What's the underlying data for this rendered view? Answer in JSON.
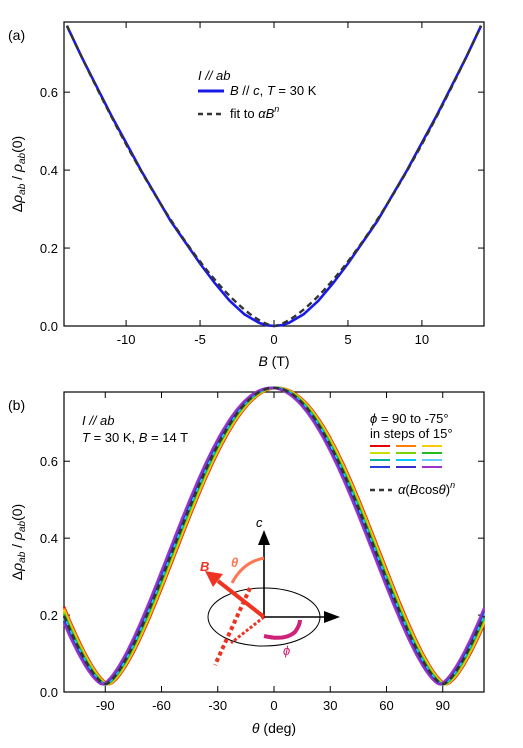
{
  "chart_data": [
    {
      "panel_label": "(a)",
      "type": "line",
      "ylabel": "Δρ_ab / ρ_ab(0)",
      "xlabel": "B (T)",
      "xlim": [
        -14.2,
        14.2
      ],
      "ylim": [
        0,
        0.78
      ],
      "xticks": [
        -10,
        -5,
        0,
        5,
        10
      ],
      "xtick_labels": [
        "-10",
        "-5",
        "0",
        "5",
        "10"
      ],
      "yticks": [
        0.0,
        0.2,
        0.4,
        0.6
      ],
      "ytick_labels": [
        "0.0",
        "0.2",
        "0.4",
        "0.6"
      ],
      "grid": false,
      "legend": {
        "position": "top-center",
        "header": "I // ab",
        "entries": [
          "B // c,  T = 30 K",
          "fit to αB^n"
        ]
      },
      "series": [
        {
          "name": "B // c,  T = 30 K",
          "color": "#1a1ae6",
          "style": "solid",
          "x": [
            -14,
            -13,
            -12,
            -11,
            -10,
            -9,
            -8,
            -7,
            -6,
            -5,
            -4,
            -3,
            -2,
            -1,
            -0.5,
            0,
            0.5,
            1,
            2,
            3,
            4,
            5,
            6,
            7,
            8,
            9,
            10,
            11,
            12,
            13,
            14
          ],
          "y": [
            0.77,
            0.69,
            0.615,
            0.54,
            0.47,
            0.4,
            0.335,
            0.27,
            0.215,
            0.16,
            0.11,
            0.065,
            0.03,
            0.008,
            0.002,
            0.0,
            0.002,
            0.008,
            0.03,
            0.065,
            0.11,
            0.16,
            0.215,
            0.27,
            0.335,
            0.4,
            0.47,
            0.54,
            0.615,
            0.69,
            0.77
          ]
        },
        {
          "name": "fit to αB^n",
          "color": "#333333",
          "style": "dashed",
          "fit": {
            "alpha": 0.01495,
            "n": 1.494
          }
        }
      ]
    },
    {
      "panel_label": "(b)",
      "type": "line",
      "ylabel": "Δρ_ab / ρ_ab(0)",
      "xlabel": "θ (deg)",
      "xlim": [
        -112,
        112
      ],
      "ylim": [
        0,
        0.78
      ],
      "xticks": [
        -90,
        -60,
        -30,
        0,
        30,
        60,
        90
      ],
      "xtick_labels": [
        "-90",
        "-60",
        "-30",
        "0",
        "30",
        "60",
        "90"
      ],
      "yticks": [
        0.0,
        0.2,
        0.4,
        0.6
      ],
      "ytick_labels": [
        "0.0",
        "0.2",
        "0.4",
        "0.6"
      ],
      "grid": false,
      "annotation_left": [
        "I // ab",
        "T = 30 K,  B = 14 T"
      ],
      "legend": {
        "position": "top-right",
        "title_lines": [
          "ϕ = 90 to -75°",
          "in steps of 15°"
        ],
        "swatch_colors": [
          [
            "#e60000",
            "#ff7f00",
            "#ffcc00"
          ],
          [
            "#ccdd00",
            "#7ad400",
            "#22bb22"
          ],
          [
            "#00b0a0",
            "#00c8ff",
            "#66ccff"
          ],
          [
            "#2244dd",
            "#3b2bcc",
            "#9933cc"
          ]
        ],
        "fit_label": "α(Bcosθ)^n"
      },
      "fit": {
        "B": 14,
        "alpha": 0.01495,
        "n": 1.494,
        "offset": 0.02,
        "color": "#333333",
        "style": "dashed"
      },
      "series_colors": [
        "#e60000",
        "#ff7f00",
        "#ffcc00",
        "#ccdd00",
        "#7ad400",
        "#22bb22",
        "#00b0a0",
        "#00c8ff",
        "#66ccff",
        "#2244dd",
        "#3b2bcc",
        "#9933cc"
      ],
      "inset": {
        "axis_label": "c",
        "vector_label": "B",
        "theta_label": "θ",
        "phi_label": "ϕ",
        "vector_color": "#ee3322",
        "theta_color": "#ff7755",
        "phi_color": "#cc2277"
      }
    }
  ]
}
